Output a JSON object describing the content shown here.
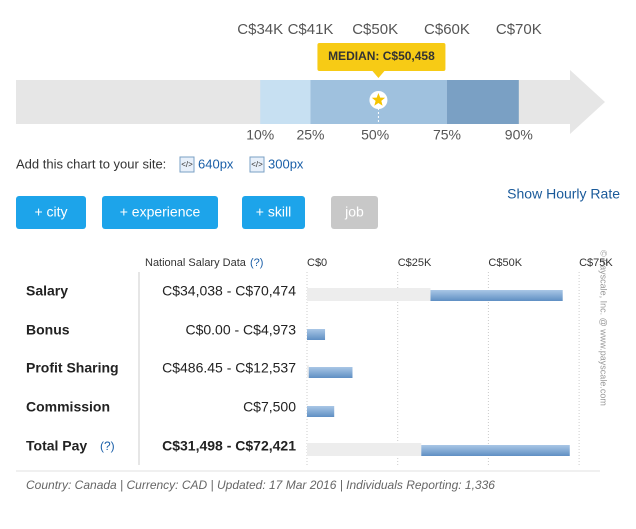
{
  "percentile_chart": {
    "xlim": [
      0,
      82000
    ],
    "percentiles": [
      {
        "value": 34000,
        "value_label": "C$34K",
        "label": "10%"
      },
      {
        "value": 41000,
        "value_label": "C$41K",
        "label": "25%"
      },
      {
        "value": 50000,
        "value_label": "C$50K",
        "label": "50%"
      },
      {
        "value": 60000,
        "value_label": "C$60K",
        "label": "75%"
      },
      {
        "value": 70000,
        "value_label": "C$70K",
        "label": "90%"
      }
    ],
    "median": {
      "value": 50458,
      "label": "MEDIAN: C$50,458"
    }
  },
  "embed": {
    "text": "Add this chart to your site:",
    "links": [
      "640px",
      "300px"
    ]
  },
  "filters": [
    "+ city",
    "+ experience",
    "+ skill",
    "job"
  ],
  "hourly_link": "Show Hourly Rate",
  "table": {
    "header": "National Salary Data",
    "help": "(?)",
    "xlim": [
      0,
      78000
    ],
    "xticks": [
      {
        "value": 0,
        "label": "C$0"
      },
      {
        "value": 25000,
        "label": "C$25K"
      },
      {
        "value": 50000,
        "label": "C$50K"
      },
      {
        "value": 75000,
        "label": "C$75K"
      }
    ],
    "rows": [
      {
        "label": "Salary",
        "range": "C$34,038 - C$70,474",
        "low": 34038,
        "high": 70474
      },
      {
        "label": "Bonus",
        "range": "C$0.00 - C$4,973",
        "low": 0,
        "high": 4973
      },
      {
        "label": "Profit Sharing",
        "range": "C$486.45 - C$12,537",
        "low": 486.45,
        "high": 12537
      },
      {
        "label": "Commission",
        "range": "C$7,500",
        "low": null,
        "high": 7500
      },
      {
        "label": "Total Pay",
        "help": "(?)",
        "range": "C$31,498 - C$72,421",
        "low": 31498,
        "high": 72421
      }
    ]
  },
  "footer": "Country: Canada | Currency: CAD | Updated: 17 Mar 2016 | Individuals Reporting: 1,336",
  "copyright": "© Payscale, Inc. @ www.payscale.com"
}
